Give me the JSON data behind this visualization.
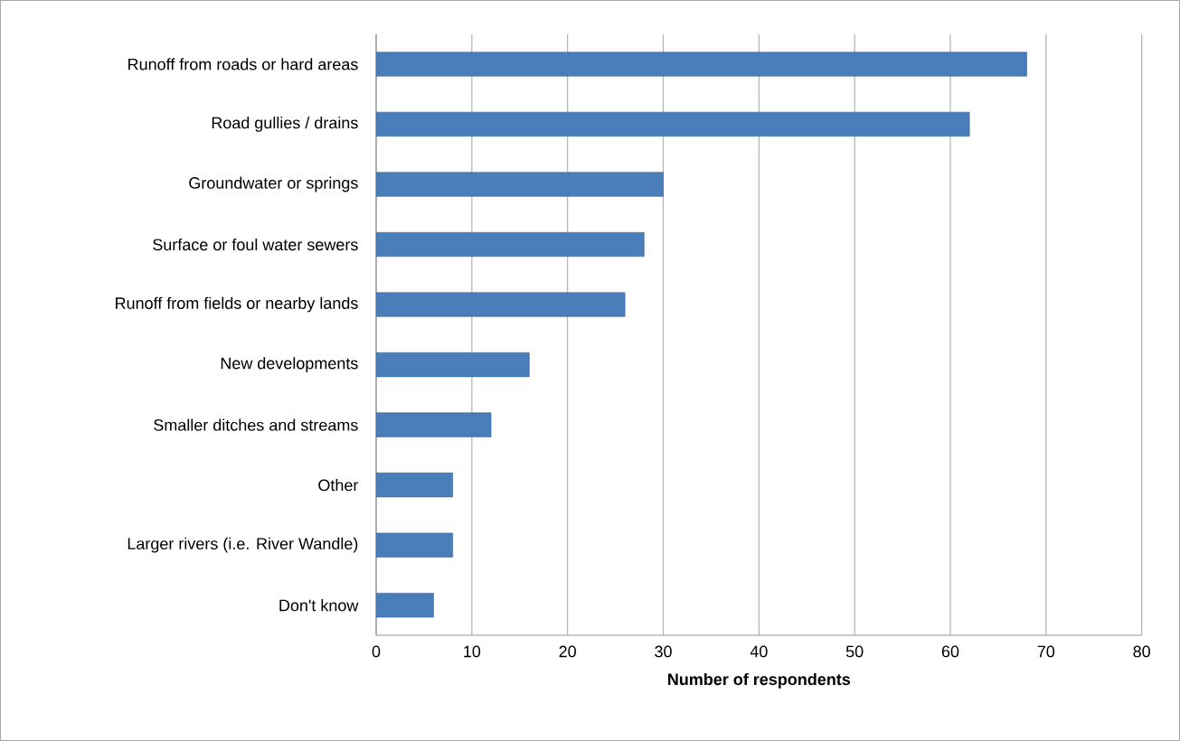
{
  "chart_data": {
    "type": "bar",
    "orientation": "horizontal",
    "xlabel": "Number of respondents",
    "categories": [
      "Runoff from roads or hard areas",
      "Road gullies / drains",
      "Groundwater or springs",
      "Surface or foul water sewers",
      "Runoff from fields or nearby lands",
      "New developments",
      "Smaller ditches and streams",
      "Other",
      "Larger rivers (i.e. River Wandle)",
      "Don't know"
    ],
    "values": [
      68,
      62,
      30,
      28,
      26,
      16,
      12,
      8,
      8,
      6
    ],
    "color": "#4a7ebb",
    "xlim": [
      0,
      80
    ],
    "xticks": [
      0,
      10,
      20,
      30,
      40,
      50,
      60,
      70,
      80
    ],
    "grid": "x"
  }
}
